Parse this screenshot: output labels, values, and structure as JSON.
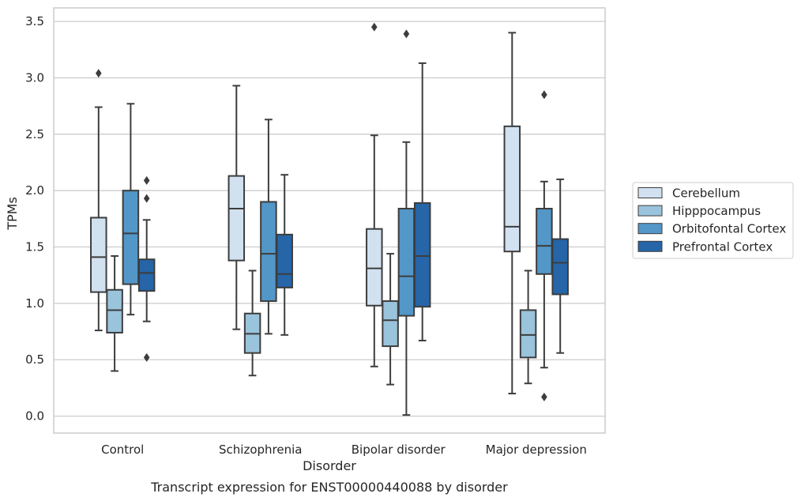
{
  "caption": "Transcript expression for ENST00000440088 by disorder",
  "chart_data": {
    "type": "box",
    "xlabel": "Disorder",
    "ylabel": "TPMs",
    "ylim": [
      -0.15,
      3.62
    ],
    "yticks": [
      "0.0",
      "0.5",
      "1.0",
      "1.5",
      "2.0",
      "2.5",
      "3.0",
      "3.5"
    ],
    "grid": "horizontal",
    "legend_placement": "right",
    "categories": [
      "Control",
      "Schizophrenia",
      "Bipolar disorder",
      "Major depression"
    ],
    "series": [
      {
        "name": "Cerebellum",
        "color": "#d1e1f0",
        "boxes": [
          {
            "whisker_low": 0.76,
            "q1": 1.1,
            "median": 1.41,
            "q3": 1.76,
            "whisker_high": 2.74,
            "outliers": [
              3.04
            ]
          },
          {
            "whisker_low": 0.77,
            "q1": 1.38,
            "median": 1.84,
            "q3": 2.13,
            "whisker_high": 2.93,
            "outliers": []
          },
          {
            "whisker_low": 0.44,
            "q1": 0.98,
            "median": 1.31,
            "q3": 1.66,
            "whisker_high": 2.49,
            "outliers": [
              3.45
            ]
          },
          {
            "whisker_low": 0.2,
            "q1": 1.46,
            "median": 1.68,
            "q3": 2.57,
            "whisker_high": 3.4,
            "outliers": []
          }
        ]
      },
      {
        "name": "Hipppocampus",
        "color": "#9ac3dc",
        "boxes": [
          {
            "whisker_low": 0.4,
            "q1": 0.74,
            "median": 0.94,
            "q3": 1.12,
            "whisker_high": 1.42,
            "outliers": []
          },
          {
            "whisker_low": 0.36,
            "q1": 0.56,
            "median": 0.73,
            "q3": 0.91,
            "whisker_high": 1.29,
            "outliers": []
          },
          {
            "whisker_low": 0.28,
            "q1": 0.62,
            "median": 0.85,
            "q3": 1.02,
            "whisker_high": 1.44,
            "outliers": []
          },
          {
            "whisker_low": 0.29,
            "q1": 0.52,
            "median": 0.72,
            "q3": 0.94,
            "whisker_high": 1.29,
            "outliers": []
          }
        ]
      },
      {
        "name": "Orbitofontal Cortex",
        "color": "#5397c8",
        "boxes": [
          {
            "whisker_low": 0.9,
            "q1": 1.17,
            "median": 1.62,
            "q3": 2.0,
            "whisker_high": 2.77,
            "outliers": []
          },
          {
            "whisker_low": 0.73,
            "q1": 1.02,
            "median": 1.44,
            "q3": 1.9,
            "whisker_high": 2.63,
            "outliers": []
          },
          {
            "whisker_low": 0.01,
            "q1": 0.89,
            "median": 1.24,
            "q3": 1.84,
            "whisker_high": 2.43,
            "outliers": [
              3.39
            ]
          },
          {
            "whisker_low": 0.43,
            "q1": 1.26,
            "median": 1.51,
            "q3": 1.84,
            "whisker_high": 2.08,
            "outliers": [
              2.85,
              0.17
            ]
          }
        ]
      },
      {
        "name": "Prefrontal Cortex",
        "color": "#2565a8",
        "boxes": [
          {
            "whisker_low": 0.84,
            "q1": 1.11,
            "median": 1.27,
            "q3": 1.39,
            "whisker_high": 1.74,
            "outliers": [
              2.09,
              1.93,
              0.52
            ]
          },
          {
            "whisker_low": 0.72,
            "q1": 1.14,
            "median": 1.26,
            "q3": 1.61,
            "whisker_high": 2.14,
            "outliers": []
          },
          {
            "whisker_low": 0.67,
            "q1": 0.97,
            "median": 1.42,
            "q3": 1.89,
            "whisker_high": 3.13,
            "outliers": []
          },
          {
            "whisker_low": 0.56,
            "q1": 1.08,
            "median": 1.36,
            "q3": 1.57,
            "whisker_high": 2.1,
            "outliers": []
          }
        ]
      }
    ]
  }
}
